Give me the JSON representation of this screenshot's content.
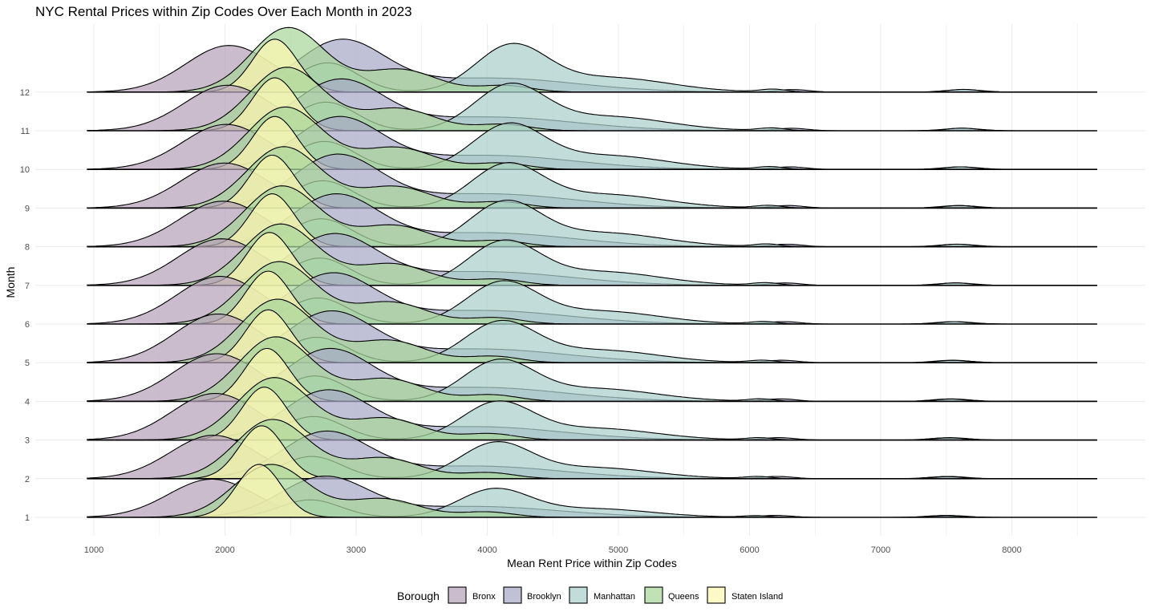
{
  "chart_data": {
    "type": "ridgeline",
    "title": "NYC Rental Prices within Zip Codes Over Each Month in 2023",
    "xlabel": "Mean Rent Price within Zip Codes",
    "ylabel": "Month",
    "xlim": [
      950,
      8650
    ],
    "x_ticks": [
      1000,
      2000,
      3000,
      4000,
      5000,
      6000,
      7000,
      8000
    ],
    "months": [
      1,
      2,
      3,
      4,
      5,
      6,
      7,
      8,
      9,
      10,
      11,
      12
    ],
    "grid": true,
    "legend": {
      "title": "Borough",
      "position": "bottom"
    },
    "series": [
      {
        "name": "Bronx",
        "color": "#b6a2b8",
        "components": [
          {
            "mean": 1900,
            "sd": 330,
            "weight": 1.0
          }
        ],
        "peak_by_month": [
          0.72,
          0.82,
          0.88,
          0.9,
          0.92,
          0.9,
          0.88,
          0.86,
          0.85,
          0.85,
          0.86,
          0.88
        ]
      },
      {
        "name": "Brooklyn",
        "color": "#a7a9c6",
        "components": [
          {
            "mean": 2750,
            "sd": 330,
            "weight": 1.0
          },
          {
            "mean": 3900,
            "sd": 650,
            "weight": 0.28
          },
          {
            "mean": 6200,
            "sd": 120,
            "weight": 0.05
          },
          {
            "mean": 7500,
            "sd": 140,
            "weight": 0.05
          }
        ],
        "peak_by_month": [
          0.78,
          0.9,
          0.95,
          1.0,
          0.98,
          0.97,
          0.98,
          1.0,
          1.02,
          1.0,
          0.98,
          1.0
        ]
      },
      {
        "name": "Manhattan",
        "color": "#a9cfcb",
        "components": [
          {
            "mean": 2650,
            "sd": 230,
            "weight": 0.65
          },
          {
            "mean": 4050,
            "sd": 270,
            "weight": 1.0
          },
          {
            "mean": 4800,
            "sd": 450,
            "weight": 0.32
          },
          {
            "mean": 6050,
            "sd": 100,
            "weight": 0.06
          },
          {
            "mean": 7500,
            "sd": 110,
            "weight": 0.06
          }
        ],
        "peak_by_month": [
          0.55,
          0.7,
          0.74,
          0.8,
          0.8,
          0.82,
          0.86,
          0.88,
          0.86,
          0.88,
          0.9,
          0.92
        ]
      },
      {
        "name": "Queens",
        "color": "#a9d59b",
        "components": [
          {
            "mean": 2350,
            "sd": 280,
            "weight": 1.0
          },
          {
            "mean": 3200,
            "sd": 280,
            "weight": 0.35
          },
          {
            "mean": 4000,
            "sd": 200,
            "weight": 0.1
          }
        ],
        "peak_by_month": [
          1.0,
          1.12,
          1.18,
          1.22,
          1.2,
          1.18,
          1.16,
          1.15,
          1.16,
          1.18,
          1.2,
          1.22
        ]
      },
      {
        "name": "Staten Island",
        "color": "#fef7b0",
        "components": [
          {
            "mean": 2300,
            "sd": 170,
            "weight": 1.0
          }
        ],
        "peak_by_month": [
          1.0,
          1.0,
          1.0,
          1.0,
          1.0,
          1.0,
          1.0,
          1.0,
          1.0,
          1.0,
          1.0,
          1.0
        ]
      }
    ],
    "staten_island_centers_by_month": [
      2260,
      2280,
      2300,
      2320,
      2330,
      2330,
      2340,
      2360,
      2360,
      2380,
      2380,
      2380
    ]
  }
}
